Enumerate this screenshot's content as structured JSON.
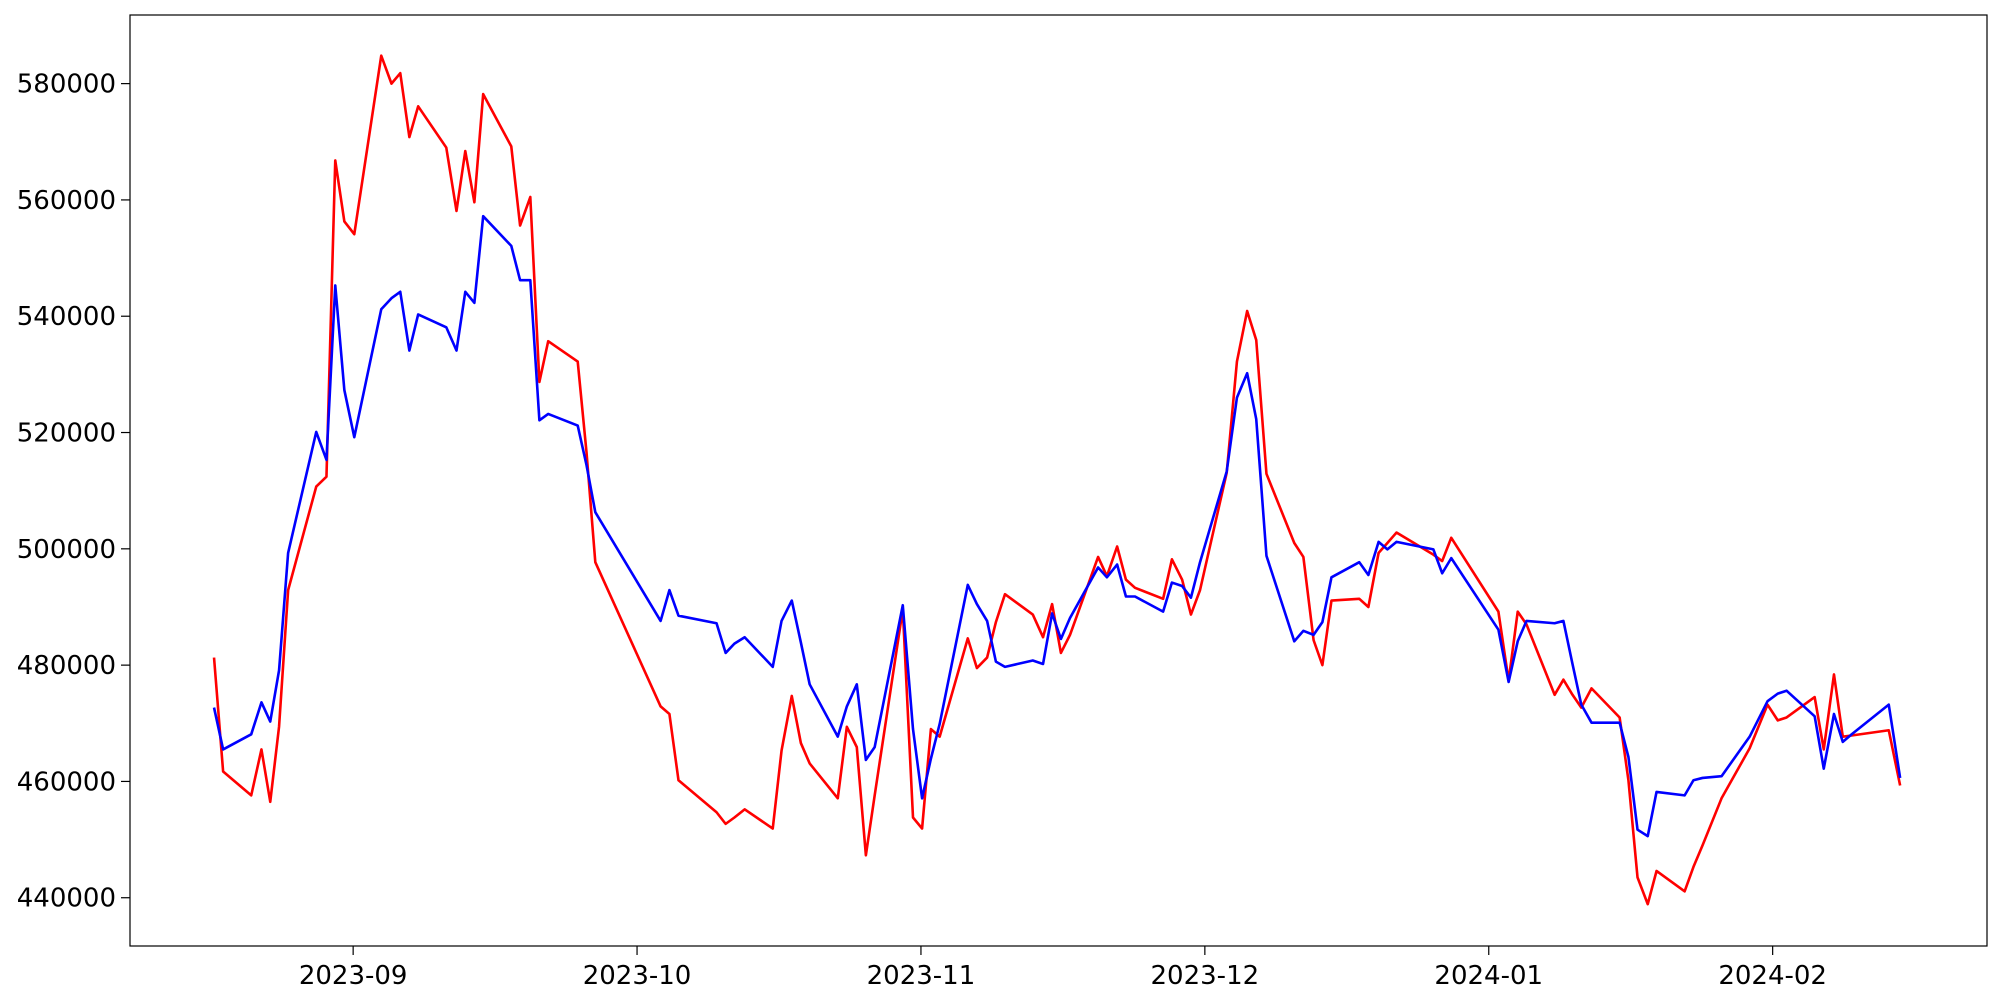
{
  "chart_data": {
    "type": "line",
    "x": [
      8.51,
      8.542,
      8.641,
      8.677,
      8.708,
      8.739,
      8.771,
      8.87,
      8.906,
      8.937,
      8.969,
      9.004,
      9.099,
      9.135,
      9.166,
      9.198,
      9.229,
      9.328,
      9.364,
      9.395,
      9.427,
      9.458,
      9.557,
      9.588,
      9.624,
      9.656,
      9.687,
      9.791,
      9.822,
      9.853,
      10.083,
      10.114,
      10.146,
      10.28,
      10.312,
      10.343,
      10.379,
      10.478,
      10.509,
      10.545,
      10.577,
      10.608,
      10.707,
      10.739,
      10.774,
      10.806,
      10.837,
      10.936,
      10.972,
      11.004,
      11.035,
      11.066,
      11.165,
      11.197,
      11.233,
      11.264,
      11.296,
      11.394,
      11.43,
      11.462,
      11.493,
      11.525,
      11.624,
      11.655,
      11.691,
      11.722,
      11.754,
      11.853,
      11.884,
      11.92,
      11.951,
      11.983,
      12.077,
      12.113,
      12.149,
      12.181,
      12.217,
      12.315,
      12.347,
      12.383,
      12.414,
      12.446,
      12.544,
      12.576,
      12.612,
      12.643,
      12.675,
      12.805,
      12.836,
      12.868,
      13.034,
      13.07,
      13.102,
      13.133,
      13.232,
      13.263,
      13.295,
      13.326,
      13.362,
      13.461,
      13.492,
      13.524,
      13.56,
      13.591,
      13.69,
      13.721,
      13.753,
      13.82,
      13.919,
      13.982,
      14.018,
      14.049,
      14.148,
      14.18,
      14.216,
      14.247,
      14.278,
      14.409,
      14.449
    ],
    "series": [
      {
        "color": "#ff0000",
        "values": [
          481300,
          461700,
          457600,
          465500,
          456500,
          469400,
          492900,
          510700,
          512400,
          566800,
          556300,
          554100,
          584800,
          580000,
          581800,
          570800,
          576100,
          569000,
          558100,
          568400,
          559600,
          578200,
          569200,
          555600,
          560500,
          528700,
          535700,
          532200,
          516600,
          497700,
          472900,
          471600,
          460200,
          454700,
          452700,
          453800,
          455200,
          451900,
          465300,
          474700,
          466600,
          463100,
          457100,
          469400,
          465900,
          447300,
          457600,
          489600,
          453800,
          451900,
          469000,
          467700,
          484600,
          479500,
          481300,
          487400,
          492200,
          488700,
          484800,
          490500,
          482100,
          485200,
          498600,
          495300,
          500400,
          494700,
          493300,
          491400,
          498200,
          494700,
          488700,
          492900,
          513100,
          532200,
          540900,
          535900,
          512900,
          501000,
          498600,
          484300,
          480000,
          491100,
          491400,
          490000,
          499300,
          501000,
          502800,
          499000,
          497900,
          501900,
          489200,
          477300,
          489200,
          487000,
          474900,
          477500,
          474900,
          472700,
          476000,
          471000,
          460200,
          443500,
          438900,
          444600,
          441100,
          445300,
          449000,
          457100,
          465700,
          473200,
          470500,
          471000,
          474500,
          465500,
          478400,
          467700,
          467900,
          468800,
          459300
        ]
      },
      {
        "color": "#0000ff",
        "values": [
          472700,
          465500,
          468100,
          473600,
          470300,
          479100,
          499300,
          520100,
          515300,
          545300,
          527300,
          519200,
          541200,
          543100,
          544200,
          534100,
          540300,
          538100,
          534100,
          544200,
          542300,
          557200,
          552100,
          546200,
          546200,
          522100,
          523200,
          521200,
          514400,
          506300,
          487600,
          492900,
          488500,
          487200,
          482100,
          483700,
          484800,
          479700,
          487600,
          491100,
          483900,
          476700,
          467700,
          472900,
          476700,
          463700,
          465900,
          490300,
          469000,
          457100,
          463900,
          469900,
          493800,
          490500,
          487600,
          480600,
          479700,
          480800,
          480200,
          488900,
          484500,
          488100,
          496800,
          495100,
          497300,
          491800,
          491800,
          489200,
          494200,
          493600,
          491600,
          497700,
          513300,
          526000,
          530200,
          522300,
          498800,
          484100,
          485900,
          485200,
          487400,
          495100,
          497700,
          495500,
          501200,
          499900,
          501200,
          499900,
          495800,
          498400,
          486100,
          477100,
          484100,
          487600,
          487200,
          487600,
          480200,
          473200,
          470100,
          470100,
          464200,
          451700,
          450600,
          458200,
          457600,
          460200,
          460600,
          460900,
          467700,
          473800,
          475100,
          475600,
          471200,
          462200,
          471600,
          466800,
          468100,
          473200,
          460600
        ]
      }
    ],
    "xlim": [
      8.214,
      14.755
    ],
    "xticks": [
      {
        "value": 9,
        "label": "2023-09"
      },
      {
        "value": 10,
        "label": "2023-10"
      },
      {
        "value": 11,
        "label": "2023-11"
      },
      {
        "value": 12,
        "label": "2023-12"
      },
      {
        "value": 13,
        "label": "2024-01"
      },
      {
        "value": 14,
        "label": "2024-02"
      }
    ],
    "ylim": [
      431700,
      591800
    ],
    "yticks": [
      440000,
      460000,
      480000,
      500000,
      520000,
      540000,
      560000,
      580000
    ],
    "grid": false
  }
}
